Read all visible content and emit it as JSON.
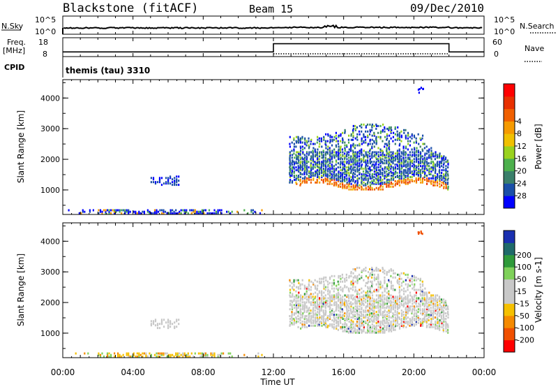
{
  "header": {
    "station": "Blackstone (fitACF)",
    "beam": "Beam 15",
    "date": "09/Dec/2010"
  },
  "noise_panel": {
    "left_label": "N.Sky",
    "left_ticks": [
      "10^5",
      "10^0"
    ],
    "right_label": "N.Search",
    "right_ticks": [
      "10^5",
      "10^0"
    ]
  },
  "freq_panel": {
    "left_label": "Freq.",
    "left_unit": "[MHz]",
    "left_ticks": [
      "18",
      "8"
    ],
    "right_label": "Nave",
    "right_ticks": [
      "60",
      "0"
    ]
  },
  "cpid": {
    "label": "CPID",
    "value": "themis (tau) 3310"
  },
  "colors": {
    "power": [
      "#0000ff",
      "#1a4fa8",
      "#3a7f6a",
      "#4db04d",
      "#9ad21e",
      "#f0c000",
      "#f59a00",
      "#f06000",
      "#e83000",
      "#ff0000"
    ],
    "velocity_pos": [
      "#1a2fb0",
      "#1f6a6a",
      "#2f9a3a",
      "#7fd15a"
    ],
    "velocity_ground": "#c8c8c8",
    "velocity_neg": [
      "#f5c000",
      "#f58a00",
      "#f05000",
      "#ff0000"
    ]
  },
  "chart_data": [
    {
      "type": "heatmap",
      "name": "power",
      "ylabel": "Slant Range [km]",
      "yticks": [
        "1000",
        "2000",
        "3000",
        "4000"
      ],
      "ylim": [
        200,
        4600
      ],
      "colorbar": {
        "label": "Power [dB]",
        "ticks": [
          "4",
          "8",
          "12",
          "16",
          "20",
          "24",
          "28"
        ],
        "range": [
          0,
          30
        ]
      },
      "regions": [
        {
          "x": [
            13.0,
            21.9
          ],
          "y": [
            1100,
            2800
          ],
          "level": "mixed-high-near"
        },
        {
          "x": [
            14.5,
            20.5
          ],
          "y": [
            2800,
            3300
          ],
          "level": "low"
        },
        {
          "x": [
            5.0,
            6.6
          ],
          "y": [
            1200,
            1500
          ],
          "level": "low"
        },
        {
          "x": [
            2.0,
            9.0
          ],
          "y": [
            200,
            400
          ],
          "level": "mixed"
        }
      ]
    },
    {
      "type": "heatmap",
      "name": "velocity",
      "ylabel": "Slant Range [km]",
      "yticks": [
        "1000",
        "2000",
        "3000",
        "4000"
      ],
      "ylim": [
        200,
        4600
      ],
      "colorbar": {
        "label": "Velocity [m s-1]",
        "ticks": [
          "200",
          "100",
          "50",
          "15",
          "-15",
          "-50",
          "-100",
          "-200"
        ],
        "range": [
          -250,
          250
        ]
      },
      "regions": [
        {
          "x": [
            13.0,
            21.9
          ],
          "y": [
            1100,
            3300
          ],
          "level": "ground-scatter"
        },
        {
          "x": [
            5.0,
            6.6
          ],
          "y": [
            1200,
            1500
          ],
          "level": "ground-scatter"
        },
        {
          "x": [
            2.0,
            9.0
          ],
          "y": [
            200,
            400
          ],
          "level": "mixed"
        }
      ]
    },
    {
      "type": "line",
      "name": "frequency",
      "x": [
        0,
        12.0,
        12.0,
        22.0,
        22.0,
        24.0
      ],
      "y": [
        10.5,
        10.5,
        14.8,
        14.8,
        10.5,
        10.5
      ],
      "nave_x": [
        12.0,
        22.0
      ],
      "nave_y": [
        9,
        9
      ]
    }
  ],
  "xaxis": {
    "ticks": [
      "00:00",
      "04:00",
      "08:00",
      "12:00",
      "16:00",
      "20:00",
      "00:00"
    ],
    "label": "Time UT"
  }
}
